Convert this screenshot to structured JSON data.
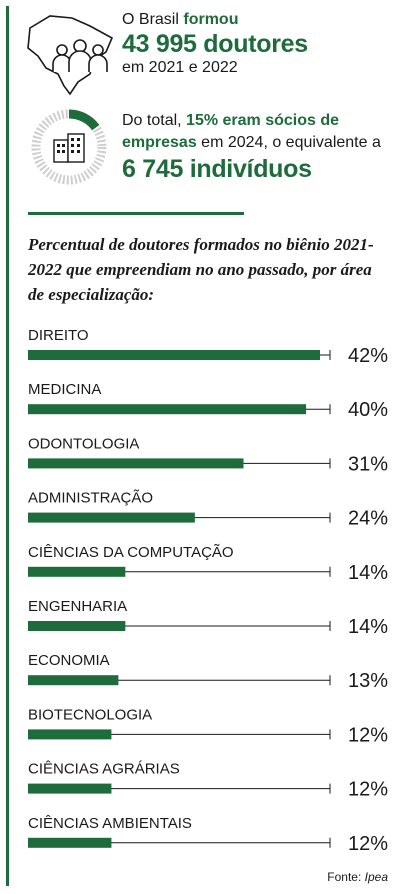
{
  "header": {
    "stat1": {
      "prefix": "O Brasil",
      "verb": "formou",
      "count": "43 995 doutores",
      "period": "em 2021 e 2022"
    },
    "stat2": {
      "lead": "Do total,",
      "highlight": "15% eram sócios de",
      "highlight2": "empresas",
      "rest": "em 2024, o equivalente a",
      "count": "6 745 indivíduos"
    },
    "icons": [
      "brazil-map-people-icon",
      "donut-buildings-icon"
    ]
  },
  "chart_data": {
    "type": "bar",
    "title": "Percentual de doutores formados no biênio 2021-2022 que empreendiam no ano passado, por área de especialização:",
    "categories": [
      "DIREITO",
      "MEDICINA",
      "ODONTOLOGIA",
      "ADMINISTRAÇÃO",
      "CIÊNCIAS DA COMPUTAÇÃO",
      "ENGENHARIA",
      "ECONOMIA",
      "BIOTECNOLOGIA",
      "CIÊNCIAS AGRÁRIAS",
      "CIÊNCIAS AMBIENTAIS"
    ],
    "values": [
      42,
      40,
      31,
      24,
      14,
      14,
      13,
      12,
      12,
      12
    ],
    "value_labels": [
      "42%",
      "40%",
      "31%",
      "24%",
      "14%",
      "14%",
      "13%",
      "12%",
      "12%",
      "12%"
    ],
    "ylim": [
      0,
      45
    ],
    "orientation": "horizontal",
    "bar_color": "#1e6b3c"
  },
  "source": {
    "label": "Fonte:",
    "name": "Ipea"
  }
}
